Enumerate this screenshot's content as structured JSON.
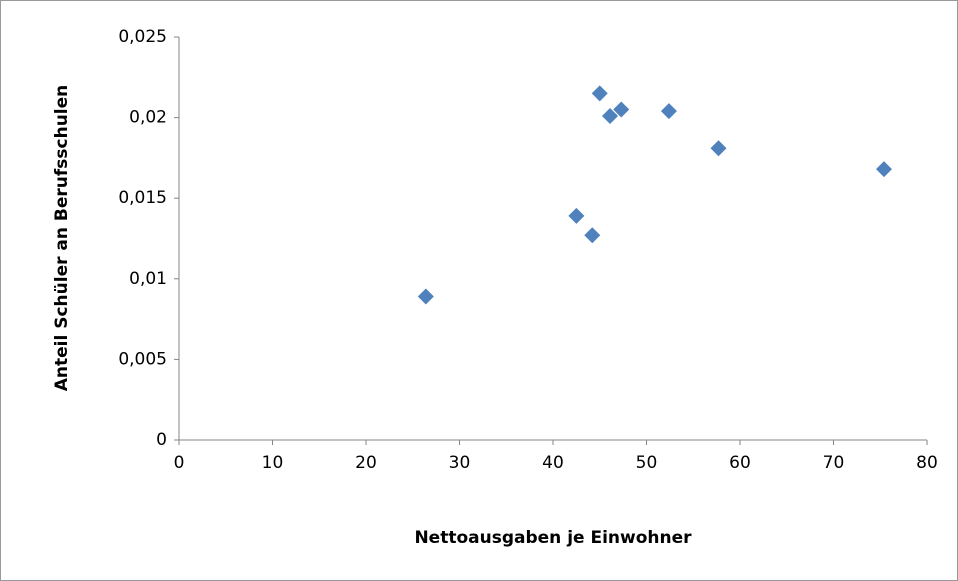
{
  "chart_data": {
    "type": "scatter",
    "x_label": "Nettoausgaben je Einwohner",
    "y_label": "Anteil Schüler an Berufsschulen",
    "series": [
      {
        "color": "#4f81bd",
        "x": [
          26.4,
          42.5,
          44.2,
          45.0,
          46.1,
          47.3,
          52.4,
          57.7,
          75.4
        ],
        "values": [
          0.0089,
          0.0139,
          0.0127,
          0.0215,
          0.0201,
          0.0205,
          0.0204,
          0.0181,
          0.0168
        ]
      }
    ],
    "xlim": [
      0,
      80
    ],
    "xticks": [
      0,
      10,
      20,
      30,
      40,
      50,
      60,
      70,
      80
    ],
    "ylim": [
      0,
      0.025
    ],
    "yticks": [
      0,
      {
        "value": 0.005,
        "label": "0,005"
      },
      {
        "value": 0.01,
        "label": "0,01"
      },
      {
        "value": 0.015,
        "label": "0,015"
      },
      {
        "value": 0.02,
        "label": "0,02"
      },
      {
        "value": 0.025,
        "label": "0,025"
      }
    ],
    "grid": false
  }
}
